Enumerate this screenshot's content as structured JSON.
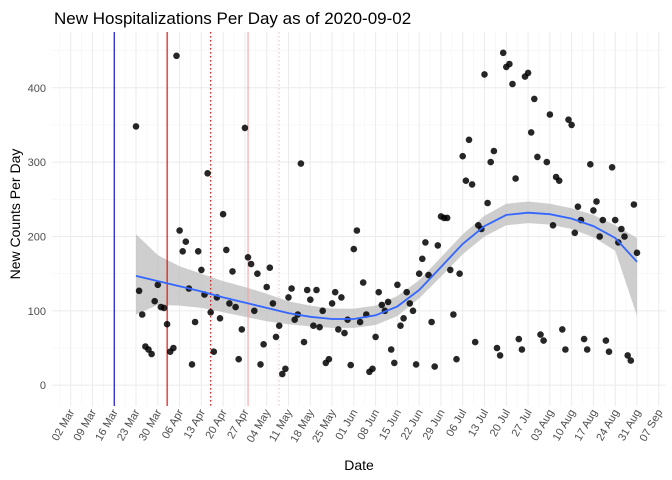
{
  "chart_data": {
    "type": "scatter",
    "title": "New Hospitalizations Per Day as of 2020-09-02",
    "xlabel": "Date",
    "ylabel": "New Counts Per Day",
    "x_range": [
      "2020-02-25",
      "2020-09-09"
    ],
    "ylim": [
      -28,
      475
    ],
    "y_ticks": [
      0,
      100,
      200,
      300,
      400
    ],
    "x_ticks": [
      "2020-03-02",
      "2020-03-09",
      "2020-03-16",
      "2020-03-23",
      "2020-03-30",
      "2020-04-06",
      "2020-04-13",
      "2020-04-20",
      "2020-04-27",
      "2020-05-04",
      "2020-05-11",
      "2020-05-18",
      "2020-05-25",
      "2020-06-01",
      "2020-06-08",
      "2020-06-15",
      "2020-06-22",
      "2020-06-29",
      "2020-07-06",
      "2020-07-13",
      "2020-07-20",
      "2020-07-27",
      "2020-08-03",
      "2020-08-10",
      "2020-08-17",
      "2020-08-24",
      "2020-08-31",
      "2020-09-07"
    ],
    "x_tick_labels": [
      "02 Mar",
      "09 Mar",
      "16 Mar",
      "23 Mar",
      "30 Mar",
      "06 Apr",
      "13 Apr",
      "20 Apr",
      "27 Apr",
      "04 May",
      "11 May",
      "18 May",
      "25 May",
      "01 Jun",
      "08 Jun",
      "15 Jun",
      "22 Jun",
      "29 Jun",
      "06 Jul",
      "13 Jul",
      "20 Jul",
      "27 Jul",
      "03 Aug",
      "10 Aug",
      "17 Aug",
      "24 Aug",
      "31 Aug",
      "07 Sep"
    ],
    "grid": true,
    "point_color": "#000000",
    "smooth_color": "#3366ff",
    "ribbon_color": "#bdbdbd",
    "vlines": [
      {
        "date": "2020-03-16",
        "color": "#0000cc",
        "style": "solid"
      },
      {
        "date": "2020-04-02",
        "color": "#dd0000",
        "style": "solid"
      },
      {
        "date": "2020-04-16",
        "color": "#cc0000",
        "style": "dotted"
      },
      {
        "date": "2020-04-28",
        "color": "#f4a0a0",
        "style": "solid"
      },
      {
        "date": "2020-05-08",
        "color": "#f8c0c0",
        "style": "dotted"
      }
    ],
    "points": [
      [
        "2020-03-23",
        348
      ],
      [
        "2020-03-24",
        127
      ],
      [
        "2020-03-25",
        95
      ],
      [
        "2020-03-26",
        52
      ],
      [
        "2020-03-27",
        48
      ],
      [
        "2020-03-28",
        42
      ],
      [
        "2020-03-29",
        113
      ],
      [
        "2020-03-30",
        135
      ],
      [
        "2020-03-31",
        105
      ],
      [
        "2020-04-01",
        104
      ],
      [
        "2020-04-02",
        82
      ],
      [
        "2020-04-03",
        45
      ],
      [
        "2020-04-04",
        50
      ],
      [
        "2020-04-05",
        443
      ],
      [
        "2020-04-06",
        208
      ],
      [
        "2020-04-07",
        180
      ],
      [
        "2020-04-08",
        193
      ],
      [
        "2020-04-09",
        130
      ],
      [
        "2020-04-10",
        28
      ],
      [
        "2020-04-11",
        85
      ],
      [
        "2020-04-12",
        180
      ],
      [
        "2020-04-13",
        155
      ],
      [
        "2020-04-14",
        122
      ],
      [
        "2020-04-15",
        285
      ],
      [
        "2020-04-16",
        98
      ],
      [
        "2020-04-17",
        45
      ],
      [
        "2020-04-18",
        118
      ],
      [
        "2020-04-19",
        90
      ],
      [
        "2020-04-20",
        230
      ],
      [
        "2020-04-21",
        182
      ],
      [
        "2020-04-22",
        110
      ],
      [
        "2020-04-23",
        153
      ],
      [
        "2020-04-24",
        105
      ],
      [
        "2020-04-25",
        35
      ],
      [
        "2020-04-26",
        75
      ],
      [
        "2020-04-27",
        346
      ],
      [
        "2020-04-28",
        172
      ],
      [
        "2020-04-29",
        163
      ],
      [
        "2020-04-30",
        100
      ],
      [
        "2020-05-01",
        150
      ],
      [
        "2020-05-02",
        28
      ],
      [
        "2020-05-03",
        55
      ],
      [
        "2020-05-04",
        132
      ],
      [
        "2020-05-05",
        158
      ],
      [
        "2020-05-06",
        110
      ],
      [
        "2020-05-07",
        65
      ],
      [
        "2020-05-08",
        80
      ],
      [
        "2020-05-09",
        15
      ],
      [
        "2020-05-10",
        22
      ],
      [
        "2020-05-11",
        118
      ],
      [
        "2020-05-12",
        130
      ],
      [
        "2020-05-13",
        88
      ],
      [
        "2020-05-14",
        95
      ],
      [
        "2020-05-15",
        298
      ],
      [
        "2020-05-16",
        58
      ],
      [
        "2020-05-17",
        128
      ],
      [
        "2020-05-18",
        115
      ],
      [
        "2020-05-19",
        80
      ],
      [
        "2020-05-20",
        128
      ],
      [
        "2020-05-21",
        78
      ],
      [
        "2020-05-22",
        100
      ],
      [
        "2020-05-23",
        30
      ],
      [
        "2020-05-24",
        35
      ],
      [
        "2020-05-25",
        110
      ],
      [
        "2020-05-26",
        125
      ],
      [
        "2020-05-27",
        75
      ],
      [
        "2020-05-28",
        118
      ],
      [
        "2020-05-29",
        70
      ],
      [
        "2020-05-30",
        88
      ],
      [
        "2020-05-31",
        27
      ],
      [
        "2020-06-01",
        183
      ],
      [
        "2020-06-02",
        208
      ],
      [
        "2020-06-03",
        85
      ],
      [
        "2020-06-04",
        138
      ],
      [
        "2020-06-05",
        95
      ],
      [
        "2020-06-06",
        18
      ],
      [
        "2020-06-07",
        22
      ],
      [
        "2020-06-08",
        65
      ],
      [
        "2020-06-09",
        125
      ],
      [
        "2020-06-10",
        108
      ],
      [
        "2020-06-11",
        100
      ],
      [
        "2020-06-12",
        112
      ],
      [
        "2020-06-13",
        48
      ],
      [
        "2020-06-14",
        30
      ],
      [
        "2020-06-15",
        135
      ],
      [
        "2020-06-16",
        80
      ],
      [
        "2020-06-17",
        90
      ],
      [
        "2020-06-18",
        125
      ],
      [
        "2020-06-19",
        110
      ],
      [
        "2020-06-20",
        100
      ],
      [
        "2020-06-21",
        28
      ],
      [
        "2020-06-22",
        150
      ],
      [
        "2020-06-23",
        170
      ],
      [
        "2020-06-24",
        192
      ],
      [
        "2020-06-25",
        148
      ],
      [
        "2020-06-26",
        85
      ],
      [
        "2020-06-27",
        25
      ],
      [
        "2020-06-28",
        188
      ],
      [
        "2020-06-29",
        227
      ],
      [
        "2020-06-30",
        225
      ],
      [
        "2020-07-01",
        225
      ],
      [
        "2020-07-02",
        155
      ],
      [
        "2020-07-03",
        95
      ],
      [
        "2020-07-04",
        35
      ],
      [
        "2020-07-05",
        150
      ],
      [
        "2020-07-06",
        308
      ],
      [
        "2020-07-07",
        275
      ],
      [
        "2020-07-08",
        330
      ],
      [
        "2020-07-09",
        270
      ],
      [
        "2020-07-10",
        58
      ],
      [
        "2020-07-11",
        215
      ],
      [
        "2020-07-12",
        210
      ],
      [
        "2020-07-13",
        418
      ],
      [
        "2020-07-14",
        245
      ],
      [
        "2020-07-15",
        300
      ],
      [
        "2020-07-16",
        315
      ],
      [
        "2020-07-17",
        50
      ],
      [
        "2020-07-18",
        40
      ],
      [
        "2020-07-19",
        447
      ],
      [
        "2020-07-20",
        428
      ],
      [
        "2020-07-21",
        432
      ],
      [
        "2020-07-22",
        405
      ],
      [
        "2020-07-23",
        278
      ],
      [
        "2020-07-24",
        62
      ],
      [
        "2020-07-25",
        48
      ],
      [
        "2020-07-26",
        415
      ],
      [
        "2020-07-27",
        420
      ],
      [
        "2020-07-28",
        340
      ],
      [
        "2020-07-29",
        385
      ],
      [
        "2020-07-30",
        307
      ],
      [
        "2020-07-31",
        68
      ],
      [
        "2020-08-01",
        60
      ],
      [
        "2020-08-02",
        300
      ],
      [
        "2020-08-03",
        364
      ],
      [
        "2020-08-04",
        215
      ],
      [
        "2020-08-05",
        280
      ],
      [
        "2020-08-06",
        275
      ],
      [
        "2020-08-07",
        75
      ],
      [
        "2020-08-08",
        48
      ],
      [
        "2020-08-09",
        357
      ],
      [
        "2020-08-10",
        350
      ],
      [
        "2020-08-11",
        205
      ],
      [
        "2020-08-12",
        240
      ],
      [
        "2020-08-13",
        222
      ],
      [
        "2020-08-14",
        62
      ],
      [
        "2020-08-15",
        48
      ],
      [
        "2020-08-16",
        297
      ],
      [
        "2020-08-17",
        235
      ],
      [
        "2020-08-18",
        247
      ],
      [
        "2020-08-19",
        200
      ],
      [
        "2020-08-20",
        222
      ],
      [
        "2020-08-21",
        60
      ],
      [
        "2020-08-22",
        45
      ],
      [
        "2020-08-23",
        293
      ],
      [
        "2020-08-24",
        222
      ],
      [
        "2020-08-25",
        192
      ],
      [
        "2020-08-26",
        210
      ],
      [
        "2020-08-27",
        200
      ],
      [
        "2020-08-28",
        40
      ],
      [
        "2020-08-29",
        33
      ],
      [
        "2020-08-30",
        243
      ],
      [
        "2020-08-31",
        178
      ]
    ],
    "smooth_fit": [
      [
        "2020-03-23",
        147
      ],
      [
        "2020-03-30",
        140
      ],
      [
        "2020-04-06",
        133
      ],
      [
        "2020-04-13",
        126
      ],
      [
        "2020-04-20",
        118
      ],
      [
        "2020-04-27",
        111
      ],
      [
        "2020-05-04",
        104
      ],
      [
        "2020-05-11",
        97
      ],
      [
        "2020-05-18",
        92
      ],
      [
        "2020-05-25",
        89
      ],
      [
        "2020-06-01",
        89
      ],
      [
        "2020-06-08",
        94
      ],
      [
        "2020-06-15",
        106
      ],
      [
        "2020-06-22",
        128
      ],
      [
        "2020-06-29",
        159
      ],
      [
        "2020-07-06",
        190
      ],
      [
        "2020-07-13",
        214
      ],
      [
        "2020-07-20",
        229
      ],
      [
        "2020-07-27",
        232
      ],
      [
        "2020-08-03",
        230
      ],
      [
        "2020-08-10",
        224
      ],
      [
        "2020-08-17",
        214
      ],
      [
        "2020-08-24",
        198
      ],
      [
        "2020-08-31",
        166
      ]
    ],
    "smooth_band": [
      [
        203,
        95
      ],
      [
        175,
        108
      ],
      [
        160,
        107
      ],
      [
        150,
        104
      ],
      [
        140,
        98
      ],
      [
        132,
        92
      ],
      [
        123,
        86
      ],
      [
        113,
        82
      ],
      [
        107,
        79
      ],
      [
        103,
        77
      ],
      [
        103,
        77
      ],
      [
        107,
        81
      ],
      [
        120,
        93
      ],
      [
        141,
        117
      ],
      [
        172,
        146
      ],
      [
        203,
        176
      ],
      [
        228,
        200
      ],
      [
        244,
        215
      ],
      [
        247,
        218
      ],
      [
        244,
        216
      ],
      [
        238,
        210
      ],
      [
        229,
        199
      ],
      [
        215,
        181
      ],
      [
        198,
        93
      ]
    ]
  }
}
